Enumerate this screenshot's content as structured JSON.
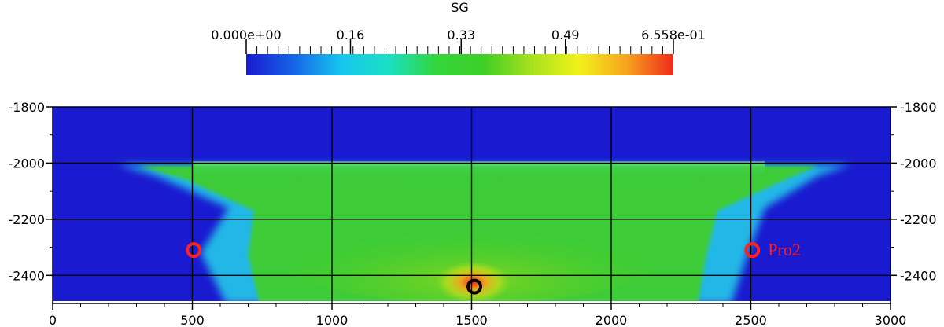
{
  "chart_data": {
    "type": "heatmap",
    "colorbar": {
      "title": "SG",
      "tick_labels": [
        "0.000e+00",
        "0.16",
        "0.33",
        "0.49",
        "6.558e-01"
      ],
      "min": 0.0,
      "max": 0.6558,
      "colors": [
        "#1a1ad0",
        "#1565e8",
        "#17c6ee",
        "#19e0c4",
        "#33d63c",
        "#3fce27",
        "#a6e11c",
        "#f2f21a",
        "#f7a51e",
        "#ef2a1a"
      ]
    },
    "x_axis": {
      "range": [
        0,
        3000
      ],
      "ticks": [
        0,
        500,
        1000,
        1500,
        2000,
        2500,
        3000
      ],
      "tick_labels": [
        "0",
        "500",
        "1000",
        "1500",
        "2000",
        "2500",
        "3000"
      ]
    },
    "y_axis": {
      "range": [
        -2500,
        -1800
      ],
      "ticks": [
        -1800,
        -2000,
        -2200,
        -2400
      ],
      "tick_labels": [
        "-1800",
        "-2000",
        "-2200",
        "-2400"
      ]
    },
    "grid": true,
    "field": {
      "background_value": 0.0,
      "plume_top_depth": -2000,
      "plume_upper_half_width_m": [
        250,
        2800
      ],
      "plume_lower_half_width_m": [
        680,
        2370
      ],
      "plume_mid_value": 0.36,
      "injection_point_value": 0.6558
    },
    "markers": [
      {
        "name": "injection-well",
        "x": 1510,
        "y": -2440,
        "color": "#000000",
        "label": ""
      },
      {
        "name": "monitor-well-left",
        "x": 505,
        "y": -2310,
        "color": "#ff2020",
        "label": ""
      },
      {
        "name": "monitor-well-right",
        "x": 2505,
        "y": -2310,
        "color": "#ff2020",
        "label": "Pro2"
      }
    ]
  }
}
